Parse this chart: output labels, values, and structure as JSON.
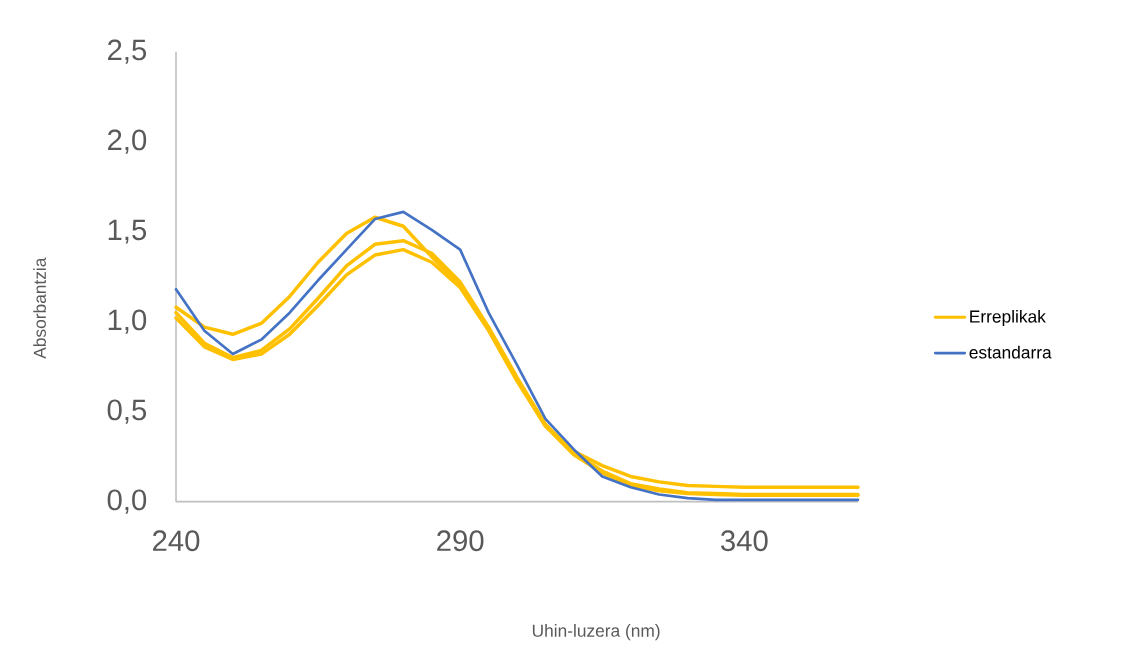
{
  "chart_data": {
    "type": "line",
    "xlabel": "Uhin-luzera (nm)",
    "ylabel": "Absorbantzia",
    "x": [
      240,
      245,
      250,
      255,
      260,
      265,
      270,
      275,
      280,
      285,
      290,
      295,
      300,
      305,
      310,
      315,
      320,
      325,
      330,
      335,
      340,
      345,
      350,
      355,
      360
    ],
    "series": [
      {
        "name": "Erreplikak",
        "color": "#ffc000",
        "values": [
          1.08,
          0.97,
          0.93,
          0.99,
          1.14,
          1.33,
          1.49,
          1.58,
          1.53,
          1.36,
          1.2,
          0.96,
          0.68,
          0.42,
          0.28,
          0.2,
          0.14,
          0.11,
          0.09,
          0.085,
          0.08,
          0.08,
          0.08,
          0.08,
          0.08
        ]
      },
      {
        "color": "#ffc000",
        "values": [
          1.05,
          0.88,
          0.8,
          0.84,
          0.96,
          1.13,
          1.31,
          1.43,
          1.45,
          1.38,
          1.22,
          0.97,
          0.69,
          0.43,
          0.27,
          0.17,
          0.1,
          0.07,
          0.05,
          0.045,
          0.04,
          0.04,
          0.04,
          0.04,
          0.04
        ]
      },
      {
        "color": "#ffc000",
        "values": [
          1.02,
          0.86,
          0.79,
          0.82,
          0.93,
          1.09,
          1.26,
          1.37,
          1.4,
          1.33,
          1.19,
          0.95,
          0.67,
          0.42,
          0.26,
          0.16,
          0.09,
          0.06,
          0.045,
          0.04,
          0.035,
          0.035,
          0.035,
          0.035,
          0.035
        ]
      },
      {
        "name": "estandarra",
        "color": "#4472c4",
        "values": [
          1.18,
          0.95,
          0.82,
          0.9,
          1.05,
          1.23,
          1.4,
          1.57,
          1.61,
          1.51,
          1.4,
          1.05,
          0.76,
          0.46,
          0.29,
          0.14,
          0.08,
          0.04,
          0.02,
          0.01,
          0.01,
          0.01,
          0.01,
          0.01,
          0.01
        ]
      }
    ],
    "xlim": [
      240,
      360
    ],
    "ylim": [
      0,
      2.5
    ],
    "xticks": [
      240,
      290,
      340
    ],
    "yticks": [
      {
        "value": 0,
        "label": "0,0"
      },
      {
        "value": 0.5,
        "label": "0,5"
      },
      {
        "value": 1,
        "label": "1,0"
      },
      {
        "value": 1.5,
        "label": "1,5"
      },
      {
        "value": 2,
        "label": "2,0"
      },
      {
        "value": 2.5,
        "label": "2,5"
      }
    ],
    "legend": "right",
    "grid": false,
    "marker": "none",
    "line_style": "solid"
  }
}
